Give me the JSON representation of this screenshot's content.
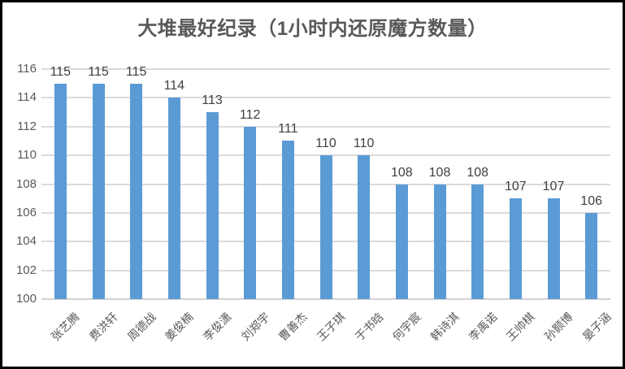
{
  "window": {
    "background": "#ffffff",
    "border_color": "#000000"
  },
  "chart_data": {
    "type": "bar",
    "title": "大堆最好纪录（1小时内还原魔方数量）",
    "categories": [
      "张艺腾",
      "费洪轩",
      "周德战",
      "姜俊楠",
      "李俊潇",
      "刘郑宇",
      "曹善杰",
      "王子琪",
      "于书晗",
      "何宇宸",
      "韩诗淇",
      "李禹诺",
      "王帅棋",
      "孙颢博",
      "晏子涵"
    ],
    "values": [
      115,
      115,
      115,
      114,
      113,
      112,
      111,
      110,
      110,
      108,
      108,
      108,
      107,
      107,
      106
    ],
    "xlabel": "",
    "ylabel": "",
    "ylim": [
      100,
      116
    ],
    "yticks": [
      100,
      102,
      104,
      106,
      108,
      110,
      112,
      114,
      116
    ],
    "grid": true,
    "legend": "none",
    "data_labels": true,
    "bar_color": "#5B9BD5",
    "gridline_color": "#DBDBDB",
    "axis_line_color": "#D2D2D2",
    "title_color": "#595959",
    "value_label_color": "#404040",
    "tick_label_color": "#595959"
  }
}
